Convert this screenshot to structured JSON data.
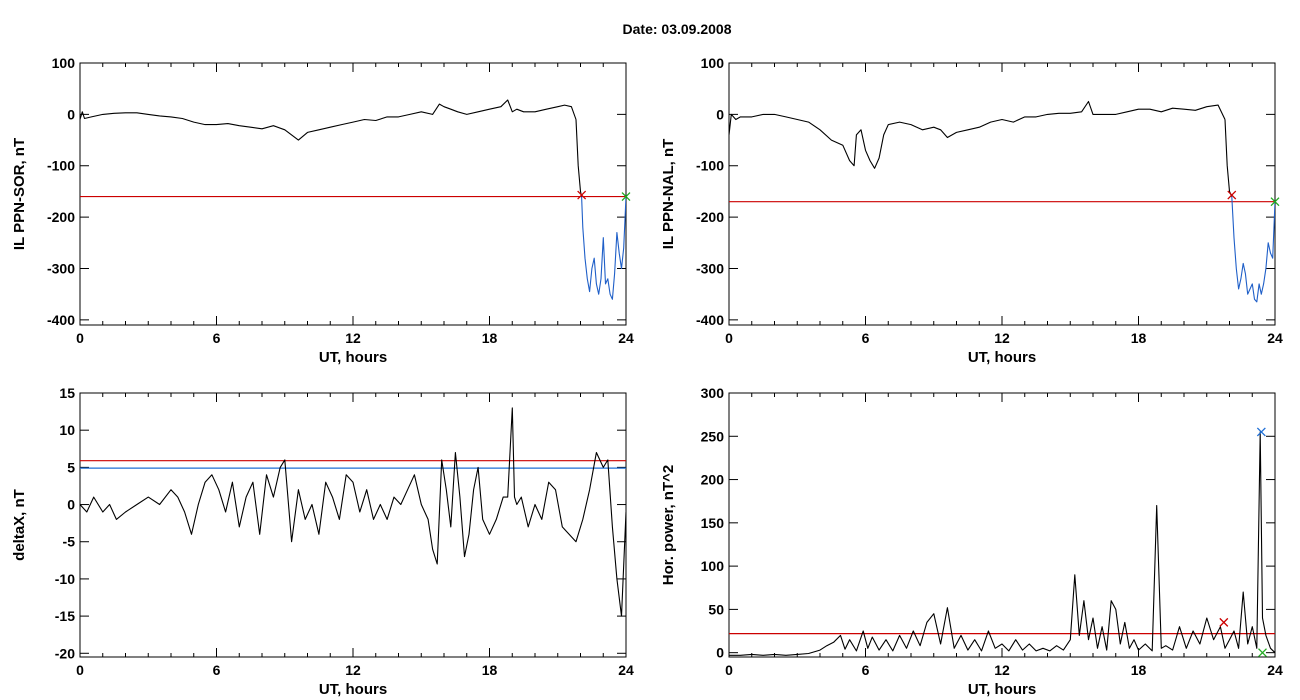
{
  "title": "Date:  03.09.2008",
  "colors": {
    "trace": "#000000",
    "threshold_red": "#cc0000",
    "threshold_blue": "#1f6fd6",
    "segment_blue": "#1f5fc8",
    "marker_red": "#cc0000",
    "marker_blue": "#1f6fd6",
    "marker_green": "#22aa22"
  },
  "chart_data": [
    {
      "id": "il-ppn-sor",
      "type": "line",
      "xlabel": "UT, hours",
      "ylabel": "IL PPN-SOR, nT",
      "xlim": [
        0,
        24
      ],
      "ylim": [
        -410,
        100
      ],
      "xticks": [
        0,
        6,
        12,
        18,
        24
      ],
      "yticks": [
        100,
        0,
        -100,
        -200,
        -300,
        -400
      ],
      "grid": false,
      "threshold_lines": [
        {
          "y": -160,
          "color": "red"
        }
      ],
      "series": [
        {
          "style": "black",
          "x": [
            0,
            0.1,
            0.2,
            0.5,
            1.0,
            1.5,
            2.0,
            2.5,
            3.0,
            3.5,
            4.0,
            4.5,
            5.0,
            5.5,
            6.0,
            6.5,
            7.0,
            7.5,
            8.0,
            8.5,
            9.0,
            9.3,
            9.6,
            10.0,
            10.5,
            11.0,
            11.5,
            12.0,
            12.5,
            13.0,
            13.5,
            14.0,
            14.5,
            15.0,
            15.5,
            15.8,
            16.0,
            16.3,
            16.6,
            17.0,
            17.5,
            18.0,
            18.5,
            18.8,
            19.0,
            19.2,
            19.5,
            20.0,
            20.5,
            21.0,
            21.3,
            21.6,
            21.8
          ],
          "y": [
            -10,
            5,
            -8,
            -5,
            0,
            2,
            3,
            3,
            0,
            -3,
            -5,
            -8,
            -15,
            -20,
            -20,
            -18,
            -22,
            -25,
            -28,
            -22,
            -30,
            -40,
            -50,
            -35,
            -30,
            -25,
            -20,
            -15,
            -10,
            -12,
            -5,
            -5,
            0,
            5,
            0,
            20,
            15,
            10,
            5,
            0,
            5,
            10,
            15,
            28,
            5,
            10,
            5,
            5,
            10,
            15,
            18,
            15,
            -10
          ]
        },
        {
          "style": "black",
          "x": [
            21.8,
            21.9,
            22.0,
            22.05
          ],
          "y": [
            -10,
            -100,
            -150,
            -160
          ]
        },
        {
          "style": "blue",
          "x": [
            22.05,
            22.1,
            22.2,
            22.3,
            22.4,
            22.5,
            22.6,
            22.7,
            22.8,
            22.9,
            23.0,
            23.1,
            23.2,
            23.3,
            23.4,
            23.5,
            23.6,
            23.7,
            23.8,
            23.9,
            24.0
          ],
          "y": [
            -160,
            -220,
            -280,
            -320,
            -345,
            -300,
            -280,
            -330,
            -350,
            -320,
            -240,
            -330,
            -320,
            -350,
            -360,
            -310,
            -230,
            -270,
            -300,
            -260,
            -160
          ]
        }
      ],
      "markers": [
        {
          "x": 22.05,
          "y": -157,
          "color": "red",
          "symbol": "×"
        },
        {
          "x": 24.0,
          "y": -160,
          "color": "green",
          "symbol": "×"
        }
      ]
    },
    {
      "id": "il-ppn-nal",
      "type": "line",
      "xlabel": "UT, hours",
      "ylabel": "IL PPN-NAL, nT",
      "xlim": [
        0,
        24
      ],
      "ylim": [
        -410,
        100
      ],
      "xticks": [
        0,
        6,
        12,
        18,
        24
      ],
      "yticks": [
        100,
        0,
        -100,
        -200,
        -300,
        -400
      ],
      "grid": false,
      "threshold_lines": [
        {
          "y": -170,
          "color": "red"
        }
      ],
      "series": [
        {
          "style": "black",
          "x": [
            0,
            0.1,
            0.3,
            0.5,
            1.0,
            1.5,
            2.0,
            2.5,
            3.0,
            3.5,
            4.0,
            4.5,
            5.0,
            5.3,
            5.5,
            5.6,
            5.8,
            6.0,
            6.2,
            6.4,
            6.6,
            6.8,
            7.0,
            7.5,
            8.0,
            8.5,
            9.0,
            9.3,
            9.6,
            10.0,
            10.5,
            11.0,
            11.5,
            12.0,
            12.5,
            13.0,
            13.5,
            14.0,
            14.5,
            15.0,
            15.5,
            15.8,
            16.0,
            16.5,
            17.0,
            17.5,
            18.0,
            18.5,
            19.0,
            19.5,
            20.0,
            20.5,
            21.0,
            21.5,
            21.8
          ],
          "y": [
            -40,
            0,
            -10,
            -5,
            -5,
            0,
            0,
            -5,
            -10,
            -15,
            -30,
            -50,
            -60,
            -90,
            -100,
            -40,
            -30,
            -70,
            -90,
            -105,
            -85,
            -40,
            -20,
            -15,
            -20,
            -30,
            -25,
            -30,
            -45,
            -35,
            -30,
            -25,
            -15,
            -10,
            -15,
            -5,
            -5,
            0,
            2,
            2,
            5,
            25,
            0,
            0,
            0,
            5,
            10,
            10,
            5,
            12,
            10,
            8,
            15,
            18,
            -10
          ]
        },
        {
          "style": "black",
          "x": [
            21.8,
            21.9,
            22.0,
            22.1
          ],
          "y": [
            -10,
            -100,
            -150,
            -160
          ]
        },
        {
          "style": "blue",
          "x": [
            22.1,
            22.2,
            22.3,
            22.4,
            22.5,
            22.6,
            22.7,
            22.8,
            22.9,
            23.0,
            23.1,
            23.2,
            23.3,
            23.4,
            23.5,
            23.6,
            23.7,
            23.8,
            23.9,
            24.0
          ],
          "y": [
            -160,
            -240,
            -300,
            -340,
            -320,
            -290,
            -310,
            -350,
            -340,
            -330,
            -360,
            -365,
            -330,
            -350,
            -330,
            -300,
            -250,
            -270,
            -280,
            -170
          ]
        }
      ],
      "markers": [
        {
          "x": 22.1,
          "y": -157,
          "color": "red",
          "symbol": "×"
        },
        {
          "x": 24.0,
          "y": -170,
          "color": "green",
          "symbol": "×"
        }
      ]
    },
    {
      "id": "deltax",
      "type": "line",
      "xlabel": "UT, hours",
      "ylabel": "deltaX, nT",
      "xlim": [
        0,
        24
      ],
      "ylim": [
        -20.5,
        15
      ],
      "xticks": [
        0,
        6,
        12,
        18,
        24
      ],
      "yticks": [
        15,
        10,
        5,
        0,
        -5,
        -10,
        -15,
        -20
      ],
      "grid": false,
      "threshold_lines": [
        {
          "y": 5.9,
          "color": "red"
        },
        {
          "y": 4.9,
          "color": "blue"
        }
      ],
      "series": [
        {
          "style": "black",
          "x": [
            0,
            0.3,
            0.6,
            1.0,
            1.3,
            1.6,
            2.0,
            2.5,
            3.0,
            3.5,
            4.0,
            4.3,
            4.6,
            4.9,
            5.2,
            5.5,
            5.8,
            6.1,
            6.4,
            6.7,
            7.0,
            7.3,
            7.6,
            7.9,
            8.2,
            8.5,
            8.8,
            9.0,
            9.3,
            9.6,
            9.9,
            10.2,
            10.5,
            10.8,
            11.1,
            11.4,
            11.7,
            12.0,
            12.3,
            12.6,
            12.9,
            13.2,
            13.5,
            13.8,
            14.1,
            14.4,
            14.7,
            15.0,
            15.3,
            15.5,
            15.7,
            15.9,
            16.1,
            16.3,
            16.5,
            16.7,
            16.9,
            17.1,
            17.3,
            17.5,
            17.7,
            18.0,
            18.3,
            18.6,
            18.8,
            19.0,
            19.1,
            19.2,
            19.4,
            19.7,
            20.0,
            20.3,
            20.6,
            20.9,
            21.2,
            21.5,
            21.8,
            22.1,
            22.4,
            22.7,
            23.0,
            23.2,
            23.4,
            23.6,
            23.8,
            24.0
          ],
          "y": [
            0,
            -1,
            1,
            -1,
            0,
            -2,
            -1,
            0,
            1,
            0,
            2,
            1,
            -1,
            -4,
            0,
            3,
            4,
            2,
            -1,
            3,
            -3,
            1,
            3,
            -4,
            4,
            1,
            5,
            6,
            -5,
            2,
            -2,
            0,
            -4,
            3,
            1,
            -2,
            4,
            3,
            -1,
            2,
            -2,
            0,
            -2,
            1,
            0,
            2,
            4,
            0,
            -2,
            -6,
            -8,
            6,
            2,
            -3,
            7,
            1,
            -7,
            -4,
            2,
            5,
            -2,
            -4,
            -2,
            1,
            1,
            13,
            1,
            0,
            1,
            -3,
            0,
            -2,
            3,
            2,
            -3,
            -4,
            -5,
            -2,
            2,
            7,
            5,
            6,
            -3,
            -10,
            -15,
            -1
          ]
        }
      ],
      "markers": []
    },
    {
      "id": "hor-power",
      "type": "line",
      "xlabel": "UT, hours",
      "ylabel": "Hor. power, nT^2",
      "xlim": [
        0,
        24
      ],
      "ylim": [
        -5,
        300
      ],
      "xticks": [
        0,
        6,
        12,
        18,
        24
      ],
      "yticks": [
        300,
        250,
        200,
        150,
        100,
        50,
        0
      ],
      "grid": false,
      "threshold_lines": [
        {
          "y": 22,
          "color": "red"
        }
      ],
      "series": [
        {
          "style": "black",
          "x": [
            0,
            0.5,
            1.0,
            1.5,
            2.0,
            2.5,
            3.0,
            3.5,
            4.0,
            4.3,
            4.6,
            4.9,
            5.1,
            5.3,
            5.6,
            5.9,
            6.1,
            6.3,
            6.6,
            6.9,
            7.2,
            7.5,
            7.8,
            8.1,
            8.4,
            8.7,
            9.0,
            9.3,
            9.6,
            9.9,
            10.2,
            10.5,
            10.8,
            11.1,
            11.4,
            11.7,
            12.0,
            12.3,
            12.6,
            12.9,
            13.2,
            13.5,
            13.8,
            14.1,
            14.4,
            14.7,
            15.0,
            15.2,
            15.4,
            15.6,
            15.8,
            16.0,
            16.2,
            16.4,
            16.6,
            16.8,
            17.0,
            17.2,
            17.4,
            17.6,
            17.8,
            18.0,
            18.3,
            18.6,
            18.8,
            19.0,
            19.2,
            19.5,
            19.8,
            20.1,
            20.4,
            20.7,
            21.0,
            21.3,
            21.6,
            21.8,
            22.0,
            22.2,
            22.4,
            22.6,
            22.8,
            23.0,
            23.2,
            23.35,
            23.45,
            23.6,
            23.8,
            24.0
          ],
          "y": [
            -3,
            -3,
            -2,
            -3,
            -2,
            -3,
            -2,
            -1,
            3,
            8,
            12,
            20,
            4,
            15,
            2,
            25,
            5,
            18,
            3,
            15,
            2,
            20,
            5,
            25,
            8,
            35,
            45,
            10,
            52,
            5,
            20,
            3,
            15,
            2,
            25,
            5,
            10,
            2,
            15,
            3,
            10,
            2,
            5,
            2,
            8,
            3,
            15,
            90,
            20,
            60,
            15,
            40,
            5,
            30,
            3,
            60,
            50,
            10,
            35,
            5,
            15,
            3,
            10,
            2,
            170,
            5,
            8,
            3,
            30,
            5,
            25,
            10,
            40,
            15,
            30,
            5,
            15,
            25,
            5,
            70,
            10,
            30,
            5,
            255,
            40,
            20,
            5,
            0
          ]
        }
      ],
      "markers": [
        {
          "x": 21.75,
          "y": 35,
          "color": "red",
          "symbol": "×"
        },
        {
          "x": 23.4,
          "y": 255,
          "color": "blue",
          "symbol": "×"
        },
        {
          "x": 23.45,
          "y": 0,
          "color": "green",
          "symbol": "×"
        }
      ]
    }
  ]
}
